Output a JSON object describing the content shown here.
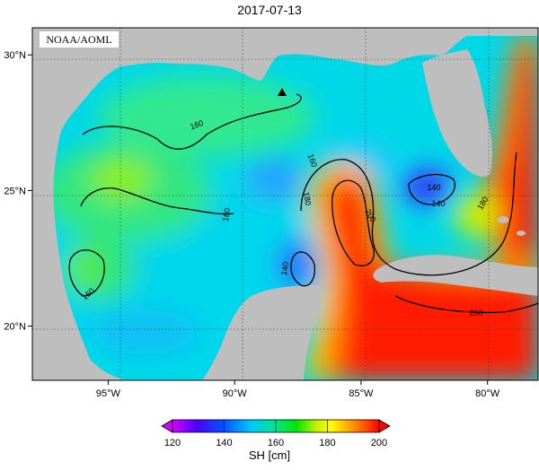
{
  "title": "2017-07-13",
  "watermark": "NOAA/AOML",
  "map": {
    "lat_labels": [
      "30°N",
      "25°N",
      "20°N"
    ],
    "lon_labels": [
      "95°W",
      "90°W",
      "85°W",
      "80°W"
    ],
    "lat_values": [
      30,
      25,
      20
    ],
    "lon_values": [
      -95,
      -90,
      -85,
      -80
    ],
    "lon_range": [
      -98,
      -78
    ],
    "lat_range": [
      18,
      31
    ],
    "land_color": "#bebebe",
    "marker": "triangle-marker"
  },
  "contour_labels": [
    "160",
    "160",
    "160",
    "160",
    "180",
    "140",
    "200",
    "140",
    "180",
    "140",
    "200"
  ],
  "colorbar": {
    "ticks": [
      "120",
      "140",
      "160",
      "180",
      "200"
    ],
    "unit": "SH [cm]",
    "range": [
      120,
      200
    ],
    "colors": [
      "#d400ff",
      "#4b00ff",
      "#0055ff",
      "#00c8ff",
      "#00ffaa",
      "#00e600",
      "#b8f000",
      "#ffff00",
      "#ffaa00",
      "#ff5500",
      "#ff0000"
    ]
  }
}
